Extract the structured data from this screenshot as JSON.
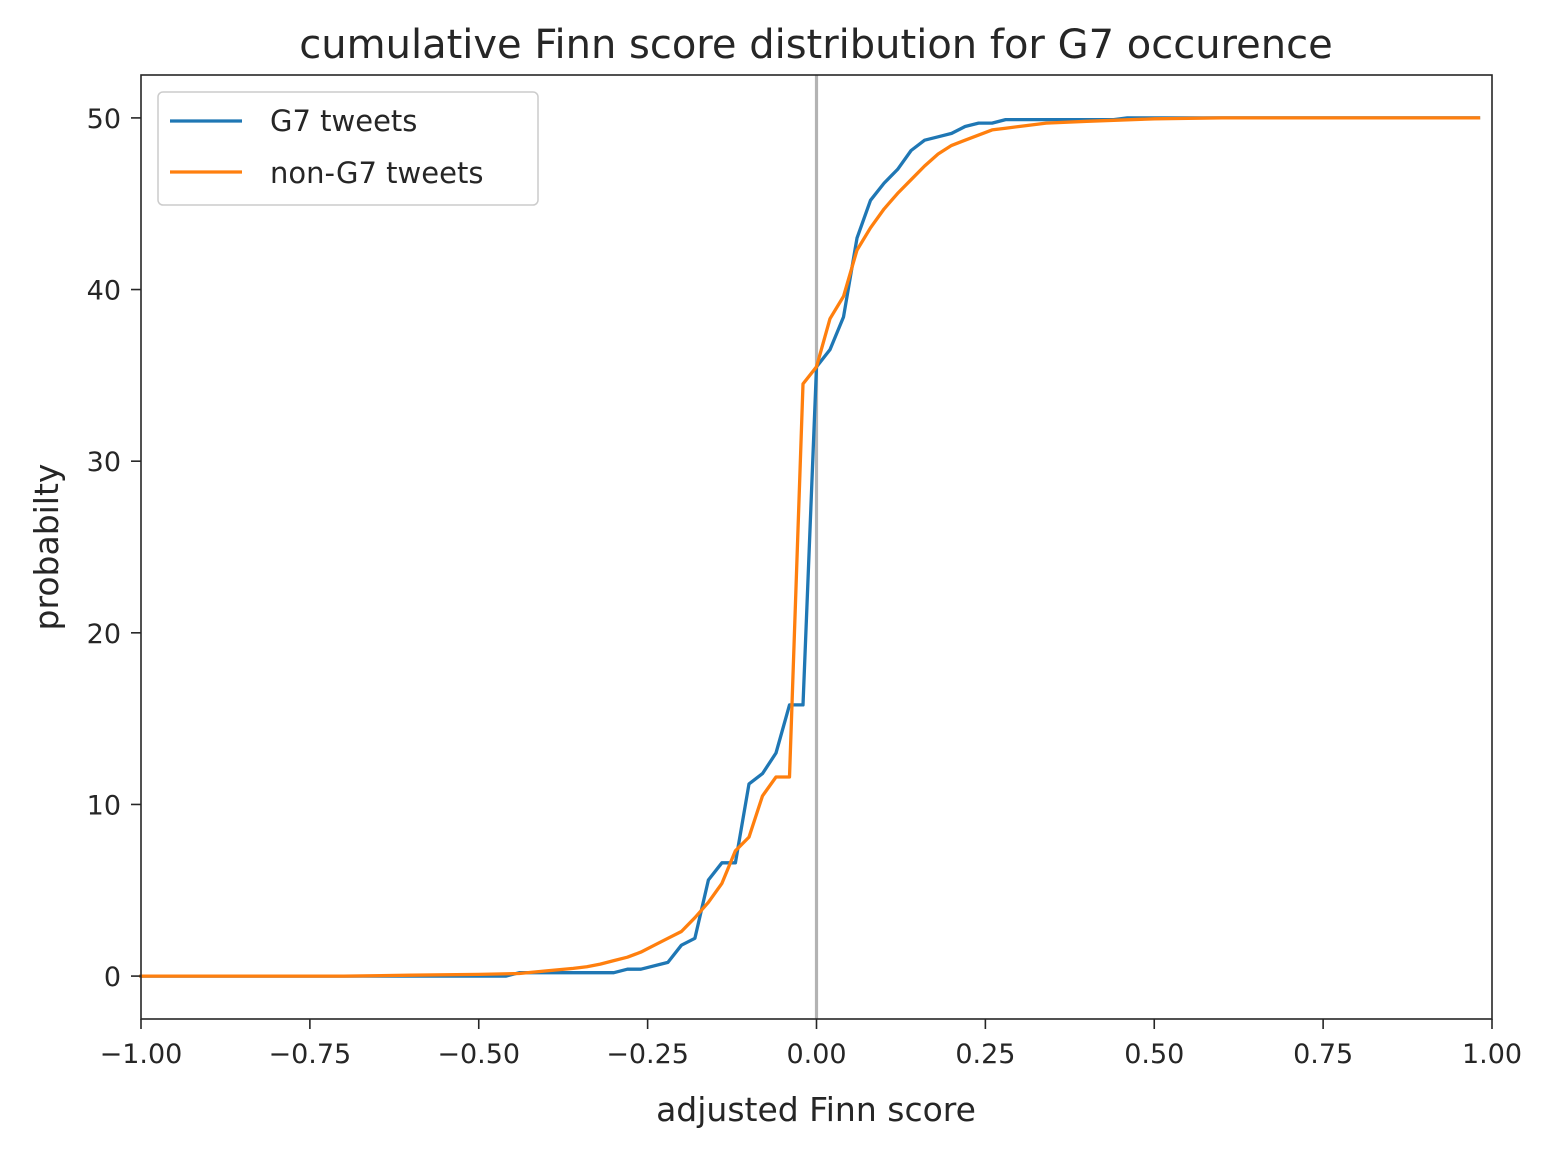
{
  "chart_data": {
    "type": "line",
    "title": "cumulative Finn score distribution for G7 occurence",
    "xlabel": "adjusted Finn score",
    "ylabel": "probabilty",
    "xlim": [
      -1.0,
      1.0
    ],
    "ylim": [
      -2.5,
      52.5
    ],
    "xticks": [
      -1.0,
      -0.75,
      -0.5,
      -0.25,
      0.0,
      0.25,
      0.5,
      0.75,
      1.0
    ],
    "xtick_labels": [
      "−1.00",
      "−0.75",
      "−0.50",
      "−0.25",
      "0.00",
      "0.25",
      "0.50",
      "0.75",
      "1.00"
    ],
    "yticks": [
      0,
      10,
      20,
      30,
      40,
      50
    ],
    "ytick_labels": [
      "0",
      "10",
      "20",
      "30",
      "40",
      "50"
    ],
    "grid": false,
    "legend_position": "top-left",
    "vline": {
      "x": 0.0,
      "color": "#b3b3b3"
    },
    "series": [
      {
        "name": "G7 tweets",
        "color": "#1f77b4",
        "x": [
          -1.0,
          -0.46,
          -0.44,
          -0.3,
          -0.28,
          -0.26,
          -0.22,
          -0.2,
          -0.18,
          -0.16,
          -0.14,
          -0.12,
          -0.1,
          -0.08,
          -0.06,
          -0.04,
          -0.02,
          0.0,
          0.02,
          0.04,
          0.06,
          0.08,
          0.1,
          0.12,
          0.14,
          0.16,
          0.18,
          0.2,
          0.22,
          0.24,
          0.26,
          0.28,
          0.3,
          0.44,
          0.46,
          0.98
        ],
        "y": [
          0,
          0,
          0.2,
          0.2,
          0.4,
          0.4,
          0.8,
          1.8,
          2.2,
          5.6,
          6.6,
          6.6,
          11.2,
          11.8,
          13.0,
          15.8,
          15.8,
          35.5,
          36.5,
          38.4,
          43.0,
          45.2,
          46.2,
          47.0,
          48.1,
          48.7,
          48.9,
          49.1,
          49.5,
          49.7,
          49.7,
          49.9,
          49.9,
          49.9,
          50.0,
          50.0
        ]
      },
      {
        "name": "non-G7 tweets",
        "color": "#ff7f0e",
        "x": [
          -1.0,
          -0.7,
          -0.6,
          -0.5,
          -0.44,
          -0.4,
          -0.36,
          -0.34,
          -0.32,
          -0.3,
          -0.28,
          -0.26,
          -0.24,
          -0.22,
          -0.2,
          -0.18,
          -0.16,
          -0.14,
          -0.12,
          -0.1,
          -0.08,
          -0.06,
          -0.04,
          -0.02,
          0.0,
          0.02,
          0.04,
          0.06,
          0.08,
          0.1,
          0.12,
          0.14,
          0.16,
          0.18,
          0.2,
          0.22,
          0.24,
          0.26,
          0.28,
          0.3,
          0.34,
          0.4,
          0.5,
          0.6,
          0.98
        ],
        "y": [
          0,
          0,
          0.05,
          0.1,
          0.15,
          0.3,
          0.45,
          0.55,
          0.7,
          0.9,
          1.1,
          1.4,
          1.8,
          2.2,
          2.6,
          3.4,
          4.3,
          5.4,
          7.3,
          8.1,
          10.5,
          11.6,
          11.6,
          34.5,
          35.5,
          38.3,
          39.6,
          42.3,
          43.6,
          44.7,
          45.6,
          46.4,
          47.2,
          47.9,
          48.4,
          48.7,
          49.0,
          49.3,
          49.4,
          49.5,
          49.7,
          49.8,
          49.95,
          50.0,
          50.0
        ]
      }
    ]
  }
}
